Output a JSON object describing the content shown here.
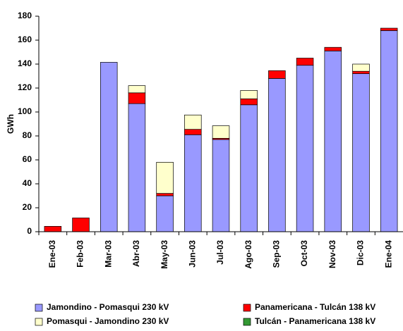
{
  "chart_data": {
    "type": "bar",
    "stacked": true,
    "y_label": "GWh",
    "categories": [
      "Ene-03",
      "Feb-03",
      "Mar-03",
      "Abr-03",
      "May-03",
      "Jun-03",
      "Jul-03",
      "Ago-03",
      "Sep-03",
      "Oct-03",
      "Nov-03",
      "Dic-03",
      "Ene-04"
    ],
    "series": [
      {
        "name": "Jamondino - Pomasqui 230 kV",
        "color": "#9999ff",
        "values": [
          0,
          0,
          141.5,
          107,
          30,
          81,
          77,
          106,
          128,
          139,
          151,
          132,
          168
        ]
      },
      {
        "name": "Panamericana - Tulcán 138 kV",
        "color": "#ff0000",
        "values": [
          4.5,
          11.5,
          0,
          9,
          2,
          4.5,
          1,
          5,
          6.5,
          6,
          3,
          2,
          2
        ]
      },
      {
        "name": "Pomasqui - Jamondino 230 kV",
        "color": "#ffffcc",
        "values": [
          0,
          0,
          0,
          6,
          26,
          12,
          10.5,
          7,
          0,
          0,
          0,
          6,
          0
        ]
      },
      {
        "name": "Tulcán - Panamericana 138 kV",
        "color": "#339933",
        "values": [
          0,
          0,
          0,
          0,
          0,
          0,
          0,
          0,
          0,
          0,
          0,
          0,
          0
        ]
      }
    ],
    "ylim": [
      0,
      180
    ],
    "yticks": [
      0,
      20,
      40,
      60,
      80,
      100,
      120,
      140,
      160,
      180
    ],
    "grid": false
  }
}
